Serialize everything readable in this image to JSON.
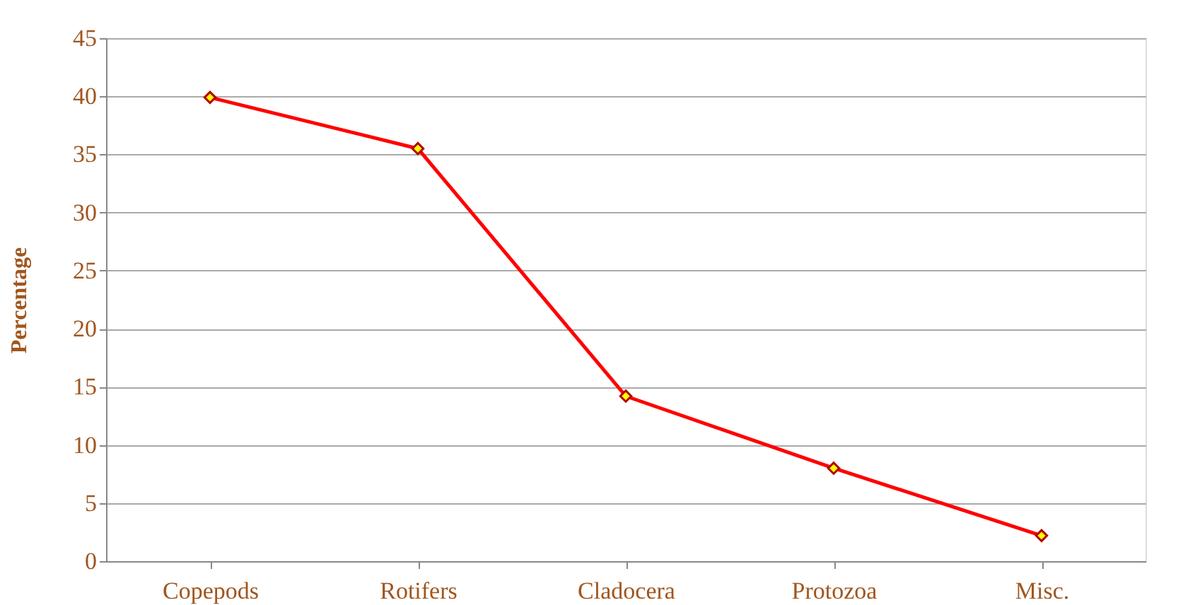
{
  "chart_data": {
    "type": "line",
    "ylabel": "Percentage",
    "categories": [
      "Copepods",
      "Rotifers",
      "Cladocera",
      "Protozoa",
      "Misc."
    ],
    "series": [
      {
        "color": "#ff0000",
        "values": [
          39.9,
          35.5,
          14.2,
          8.0,
          2.2
        ]
      }
    ],
    "ylim": [
      0,
      45
    ],
    "yticks": [
      0,
      5,
      10,
      15,
      20,
      25,
      30,
      35,
      40,
      45
    ],
    "grid": "y",
    "marker": "diamond",
    "line_style": "solid"
  }
}
